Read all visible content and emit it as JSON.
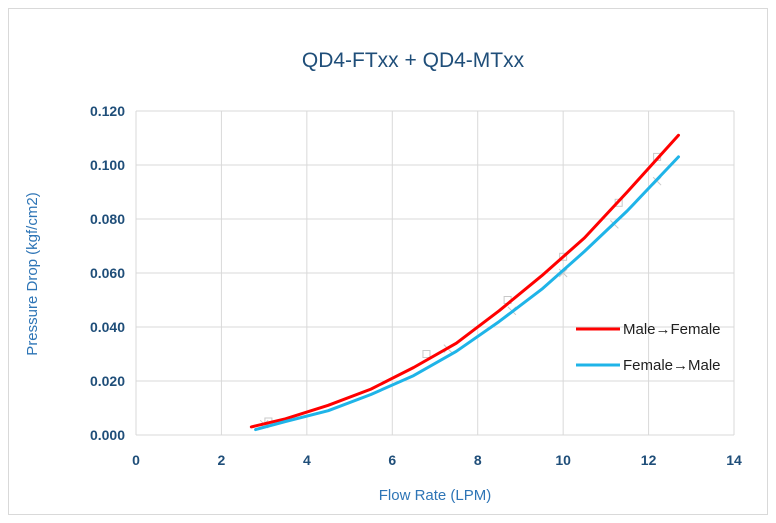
{
  "chart_data": {
    "type": "line",
    "title": "QD4-FTxx + QD4-MTxx",
    "xlabel": "Flow Rate (LPM)",
    "ylabel": "Pressure Drop (kgf/cm2)",
    "xlim": [
      0,
      14
    ],
    "ylim": [
      0,
      0.12
    ],
    "x_ticks": [
      "0",
      "2",
      "4",
      "6",
      "8",
      "10",
      "12",
      "14"
    ],
    "y_ticks": [
      "0.000",
      "0.020",
      "0.040",
      "0.060",
      "0.080",
      "0.100",
      "0.120"
    ],
    "grid": true,
    "legend_position": "right",
    "series": [
      {
        "name": "Male→Female",
        "color": "#ff0000",
        "x": [
          2.7,
          3.5,
          4.5,
          5.5,
          6.5,
          7.5,
          8.5,
          9.5,
          10.5,
          11.5,
          12.7
        ],
        "values": [
          0.003,
          0.006,
          0.011,
          0.017,
          0.025,
          0.034,
          0.046,
          0.059,
          0.073,
          0.09,
          0.111
        ]
      },
      {
        "name": "Female→Male",
        "color": "#1fb4e8",
        "x": [
          2.8,
          3.5,
          4.5,
          5.5,
          6.5,
          7.5,
          8.5,
          9.5,
          10.5,
          11.5,
          12.7
        ],
        "values": [
          0.002,
          0.005,
          0.009,
          0.015,
          0.022,
          0.031,
          0.042,
          0.054,
          0.068,
          0.083,
          0.103
        ]
      }
    ],
    "markers": [
      {
        "name": "Male→Female",
        "x": [
          3.1,
          6.8,
          8.7,
          10.0,
          11.3,
          12.2
        ],
        "values": [
          0.005,
          0.03,
          0.05,
          0.066,
          0.086,
          0.103
        ]
      },
      {
        "name": "Female→Male",
        "x": [
          3.0,
          7.3,
          8.8,
          10.0,
          11.2,
          12.2
        ],
        "values": [
          0.004,
          0.032,
          0.046,
          0.06,
          0.078,
          0.094
        ]
      }
    ]
  }
}
